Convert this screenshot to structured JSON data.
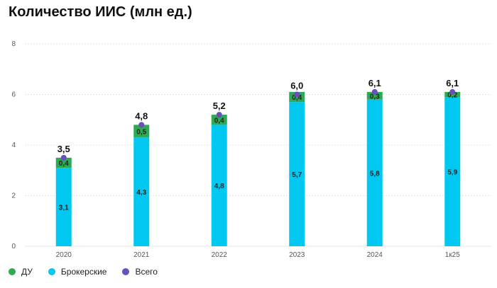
{
  "title": "Количество ИИС (млн ед.)",
  "colors": {
    "du": "#2eaa55",
    "broker": "#00c8f0",
    "total": "#6a4fbd",
    "grid": "#e6e6e6"
  },
  "chart_data": {
    "type": "bar",
    "stacked": true,
    "categories": [
      "2020",
      "2021",
      "2022",
      "2023",
      "2024",
      "1к25"
    ],
    "series": [
      {
        "name": "Брокерские",
        "values": [
          3.1,
          4.3,
          4.8,
          5.7,
          5.8,
          5.9
        ],
        "labels": [
          "3,1",
          "4,3",
          "4,8",
          "5,7",
          "5,8",
          "5,9"
        ]
      },
      {
        "name": "ДУ",
        "values": [
          0.4,
          0.5,
          0.4,
          0.4,
          0.3,
          0.2
        ],
        "labels": [
          "0,4",
          "0,5",
          "0,4",
          "0,4",
          "0,3",
          "0,2"
        ]
      }
    ],
    "total": {
      "name": "Всего",
      "values": [
        3.5,
        4.8,
        5.2,
        6.0,
        6.1,
        6.1
      ],
      "labels": [
        "3,5",
        "4,8",
        "5,2",
        "6,0",
        "6,1",
        "6,1"
      ]
    },
    "ylim": [
      0,
      8
    ],
    "yticks": [
      "0",
      "2",
      "4",
      "6",
      "8"
    ],
    "grid": true,
    "legend_position": "bottom-left"
  },
  "legend": [
    {
      "label": "ДУ",
      "color": "#2eaa55"
    },
    {
      "label": "Брокерские",
      "color": "#00c8f0"
    },
    {
      "label": "Всего",
      "color": "#6a4fbd"
    }
  ]
}
